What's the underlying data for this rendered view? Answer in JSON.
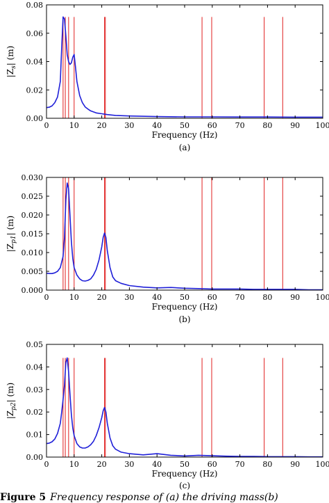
{
  "colors": {
    "spectrum": "#1f1fd8",
    "modes": "#e01e1e",
    "axis": "#000000"
  },
  "caption": {
    "prefix": "Figure 5",
    "text": "Frequency response of (a) the driving mass(b)"
  },
  "chart_data": [
    {
      "type": "line",
      "panel": "(a)",
      "ylabel": "|Z_s| (m)",
      "ylabel_main": "|Z",
      "ylabel_sub": "s",
      "ylabel_tail": "| (m)",
      "xlabel": "Frequency (Hz)",
      "xlim": [
        0,
        100
      ],
      "ylim": [
        0,
        0.08
      ],
      "xticks": [
        0,
        10,
        20,
        30,
        40,
        50,
        60,
        70,
        80,
        90,
        100
      ],
      "yticks": [
        0.0,
        0.02,
        0.04,
        0.06,
        0.08
      ],
      "ytick_labels": [
        "0.00",
        "0.02",
        "0.04",
        "0.06",
        "0.08"
      ],
      "grid": false,
      "vlines": {
        "x": [
          6.0,
          6.8,
          8.0,
          10.0,
          21.0,
          21.3,
          56.3,
          59.8,
          78.8,
          85.5
        ],
        "ymax": 0.0715
      },
      "series": [
        {
          "x": [
            0,
            1,
            2,
            3,
            4,
            5,
            5.5,
            6,
            6.5,
            7,
            7.5,
            8,
            8.5,
            9,
            9.5,
            10,
            10.5,
            11,
            12,
            13,
            14,
            15,
            16,
            18,
            20,
            22,
            25,
            30,
            40,
            50,
            60,
            70,
            80,
            90,
            100
          ],
          "y": [
            0.0075,
            0.0078,
            0.0088,
            0.011,
            0.015,
            0.026,
            0.05,
            0.0715,
            0.07,
            0.058,
            0.045,
            0.04,
            0.038,
            0.039,
            0.043,
            0.045,
            0.036,
            0.026,
            0.016,
            0.011,
            0.008,
            0.0065,
            0.0052,
            0.0038,
            0.0032,
            0.0026,
            0.002,
            0.0016,
            0.0012,
            0.001,
            0.001,
            0.0009,
            0.0009,
            0.0008,
            0.0008
          ]
        }
      ]
    },
    {
      "type": "line",
      "panel": "(b)",
      "ylabel": "|Z_p1| (m)",
      "ylabel_main": "|Z",
      "ylabel_sub": "p1",
      "ylabel_tail": "| (m)",
      "xlabel": "Frequency (Hz)",
      "xlim": [
        0,
        100
      ],
      "ylim": [
        0,
        0.03
      ],
      "xticks": [
        0,
        10,
        20,
        30,
        40,
        50,
        60,
        70,
        80,
        90,
        100
      ],
      "yticks": [
        0.0,
        0.005,
        0.01,
        0.015,
        0.02,
        0.025,
        0.03
      ],
      "ytick_labels": [
        "0.000",
        "0.005",
        "0.010",
        "0.015",
        "0.020",
        "0.025",
        "0.030"
      ],
      "grid": false,
      "vlines": {
        "x": [
          6.0,
          6.8,
          8.0,
          10.0,
          21.0,
          21.3,
          56.3,
          59.8,
          78.8,
          85.5
        ],
        "ymax": 0.03
      },
      "series": [
        {
          "x": [
            0,
            1,
            2,
            3,
            4,
            5,
            6,
            6.5,
            7,
            7.5,
            8,
            8.5,
            9,
            9.5,
            10,
            11,
            12,
            13,
            14,
            15,
            16,
            17,
            18,
            19,
            20,
            20.5,
            21,
            21.5,
            22,
            23,
            24,
            25,
            27,
            30,
            35,
            40,
            45,
            50,
            55,
            60,
            65,
            70,
            75,
            80,
            85,
            90,
            95,
            100
          ],
          "y": [
            0.0045,
            0.0044,
            0.0044,
            0.0046,
            0.005,
            0.006,
            0.009,
            0.014,
            0.024,
            0.0285,
            0.027,
            0.02,
            0.013,
            0.0085,
            0.006,
            0.004,
            0.003,
            0.0025,
            0.0024,
            0.0026,
            0.003,
            0.004,
            0.0055,
            0.008,
            0.0115,
            0.014,
            0.0152,
            0.014,
            0.0105,
            0.006,
            0.0035,
            0.0025,
            0.0018,
            0.0012,
            0.0008,
            0.0006,
            0.0007,
            0.0005,
            0.0004,
            0.0003,
            0.0003,
            0.0003,
            0.0002,
            0.0002,
            0.0002,
            0.0002,
            0.0001,
            0.0001
          ]
        }
      ]
    },
    {
      "type": "line",
      "panel": "(c)",
      "ylabel": "|Z_p2| (m)",
      "ylabel_main": "|Z",
      "ylabel_sub": "p2",
      "ylabel_tail": "| (m)",
      "xlabel": "Frequency (Hz)",
      "xlim": [
        0,
        100
      ],
      "ylim": [
        0,
        0.05
      ],
      "xticks": [
        0,
        10,
        20,
        30,
        40,
        50,
        60,
        70,
        80,
        90,
        100
      ],
      "yticks": [
        0.0,
        0.01,
        0.02,
        0.03,
        0.04,
        0.05
      ],
      "ytick_labels": [
        "0.00",
        "0.01",
        "0.02",
        "0.03",
        "0.04",
        "0.05"
      ],
      "grid": false,
      "vlines": {
        "x": [
          6.0,
          6.8,
          8.0,
          10.0,
          21.0,
          21.3,
          56.3,
          59.8,
          78.8,
          85.5
        ],
        "ymax": 0.044
      },
      "series": [
        {
          "x": [
            0,
            1,
            2,
            3,
            4,
            5,
            5.5,
            6,
            6.5,
            7,
            7.5,
            8,
            8.5,
            9,
            9.5,
            10,
            11,
            12,
            13,
            14,
            15,
            16,
            17,
            18,
            19,
            20,
            20.5,
            21,
            21.5,
            22,
            23,
            24,
            25,
            27,
            30,
            35,
            40,
            45,
            50,
            55,
            60,
            65,
            70,
            75,
            80,
            85,
            90,
            95,
            100
          ],
          "y": [
            0.006,
            0.0062,
            0.0068,
            0.008,
            0.0105,
            0.015,
            0.02,
            0.0255,
            0.032,
            0.042,
            0.044,
            0.038,
            0.028,
            0.019,
            0.013,
            0.0095,
            0.006,
            0.0045,
            0.004,
            0.004,
            0.0045,
            0.0055,
            0.007,
            0.0095,
            0.013,
            0.0175,
            0.0205,
            0.022,
            0.02,
            0.015,
            0.0085,
            0.005,
            0.0035,
            0.0022,
            0.0015,
            0.001,
            0.0015,
            0.0008,
            0.0005,
            0.0008,
            0.0006,
            0.0004,
            0.0003,
            0.0003,
            0.0002,
            0.0002,
            0.0002,
            0.0001,
            0.0001
          ]
        }
      ]
    }
  ]
}
